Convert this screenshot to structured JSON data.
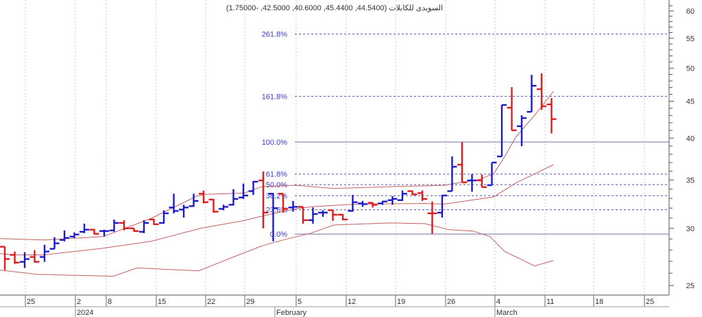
{
  "chart_data": {
    "type": "ohlc-bar",
    "title": "السويدى للكابلات (44.5400, 45.4400, 40.6000, 42.5000, -1.75000)",
    "y_scale": "log",
    "ylim": [
      24,
      62
    ],
    "y_ticks": [
      "60",
      "55",
      "50",
      "45",
      "40",
      "35",
      "30",
      "25"
    ],
    "y_tick_values": [
      60,
      55,
      50,
      45,
      40,
      35,
      30,
      25
    ],
    "x_ticks": [
      "25",
      "2",
      "8",
      "15",
      "22",
      "29",
      "5",
      "12",
      "19",
      "26",
      "4",
      "11",
      "18",
      "25"
    ],
    "x_months": [
      "2024",
      "February",
      "March"
    ],
    "grid": "vertical dotted",
    "colors": {
      "up": "#1a1acc",
      "down": "#e01a1a",
      "band": "#c06060",
      "fib_solid": "#7070a8",
      "fib_dotted": "#5050a0",
      "fib_label": "#3a3acc"
    },
    "bars_ohlc": [
      [
        28.29,
        28.29,
        26.26,
        27.2,
        "d"
      ],
      [
        27.56,
        27.86,
        26.79,
        26.9,
        "d"
      ],
      [
        26.96,
        27.8,
        26.44,
        27.2,
        "u"
      ],
      [
        27.38,
        27.98,
        26.9,
        26.96,
        "d"
      ],
      [
        27.38,
        28.47,
        26.96,
        27.86,
        "u"
      ],
      [
        28.1,
        29.16,
        28.1,
        28.6,
        "u"
      ],
      [
        28.91,
        29.8,
        28.78,
        29.1,
        "u"
      ],
      [
        29.22,
        29.61,
        29.1,
        29.42,
        "u"
      ],
      [
        29.67,
        30.45,
        29.54,
        29.87,
        "u"
      ],
      [
        29.87,
        29.93,
        29.42,
        29.48,
        "d"
      ],
      [
        29.74,
        29.87,
        29.22,
        29.74,
        "u"
      ],
      [
        29.8,
        30.86,
        29.67,
        30.52,
        "u"
      ],
      [
        30.52,
        30.79,
        29.8,
        30.0,
        "d"
      ],
      [
        30.0,
        30.0,
        29.67,
        29.74,
        "d"
      ],
      [
        29.67,
        30.79,
        29.54,
        30.52,
        "u"
      ],
      [
        30.86,
        30.92,
        30.32,
        30.39,
        "d"
      ],
      [
        30.52,
        31.78,
        30.45,
        31.47,
        "u"
      ],
      [
        32.06,
        33.5,
        31.47,
        31.71,
        "u"
      ],
      [
        31.85,
        32.34,
        31.05,
        32.06,
        "u"
      ],
      [
        32.2,
        33.5,
        32.13,
        32.74,
        "u"
      ],
      [
        33.5,
        33.85,
        32.48,
        32.61,
        "d"
      ],
      [
        32.88,
        32.95,
        31.54,
        31.64,
        "d"
      ],
      [
        31.92,
        32.34,
        31.78,
        32.13,
        "u"
      ],
      [
        32.34,
        33.99,
        32.27,
        32.95,
        "u"
      ],
      [
        33.1,
        34.6,
        32.95,
        33.31,
        "u"
      ],
      [
        33.78,
        34.88,
        33.37,
        34.81,
        "u"
      ],
      [
        34.95,
        35.96,
        30.0,
        31.54,
        "d"
      ],
      [
        33.5,
        33.57,
        28.78,
        31.99,
        "u"
      ],
      [
        33.5,
        33.5,
        31.54,
        31.92,
        "d"
      ],
      [
        32.06,
        32.74,
        31.64,
        32.13,
        "u"
      ],
      [
        32.13,
        32.13,
        30.45,
        30.79,
        "d"
      ],
      [
        30.79,
        32.06,
        30.45,
        31.4,
        "u"
      ],
      [
        31.54,
        31.78,
        31.12,
        31.54,
        "u"
      ],
      [
        31.78,
        31.78,
        30.72,
        31.33,
        "d"
      ],
      [
        31.33,
        31.4,
        30.79,
        30.86,
        "d"
      ],
      [
        31.71,
        33.37,
        31.64,
        32.61,
        "u"
      ],
      [
        32.48,
        32.74,
        32.13,
        32.41,
        "u"
      ],
      [
        32.54,
        32.61,
        32.06,
        32.34,
        "d"
      ],
      [
        32.48,
        32.74,
        32.34,
        32.68,
        "u"
      ],
      [
        32.82,
        33.24,
        32.34,
        32.95,
        "u"
      ],
      [
        32.82,
        33.85,
        32.74,
        33.5,
        "u"
      ],
      [
        33.78,
        33.85,
        33.37,
        33.43,
        "d"
      ],
      [
        33.57,
        33.85,
        32.74,
        32.95,
        "d"
      ],
      [
        31.47,
        32.68,
        29.48,
        31.47,
        "d"
      ],
      [
        31.54,
        33.37,
        31.05,
        33.31,
        "u"
      ],
      [
        33.78,
        37.73,
        33.78,
        36.51,
        "u"
      ],
      [
        36.75,
        39.5,
        34.74,
        34.74,
        "d"
      ],
      [
        34.95,
        35.67,
        33.71,
        34.95,
        "u"
      ],
      [
        34.95,
        35.6,
        34.21,
        34.21,
        "d"
      ],
      [
        34.42,
        37.0,
        34.42,
        37.0,
        "u"
      ],
      [
        37.73,
        44.46,
        37.73,
        44.46,
        "u"
      ],
      [
        44.08,
        47.06,
        41.01,
        41.01,
        "d"
      ],
      [
        41.55,
        43.02,
        38.99,
        42.64,
        "u"
      ],
      [
        43.5,
        48.95,
        43.5,
        47.27,
        "u"
      ],
      [
        46.76,
        49.17,
        43.78,
        44.27,
        "d"
      ],
      [
        44.54,
        45.44,
        40.6,
        42.5,
        "d"
      ]
    ],
    "bands": {
      "upper": [
        [
          -0.5,
          29.03
        ],
        [
          4,
          28.91
        ],
        [
          9.9,
          29.22
        ],
        [
          14.7,
          30.95
        ],
        [
          19.3,
          33.24
        ],
        [
          20.2,
          33.43
        ],
        [
          24.1,
          33.57
        ],
        [
          25.9,
          34.28
        ],
        [
          29.2,
          34.42
        ],
        [
          33.1,
          34.07
        ],
        [
          39.5,
          34.28
        ],
        [
          42.3,
          34.35
        ],
        [
          44.2,
          34.42
        ],
        [
          47.8,
          35.07
        ],
        [
          49.2,
          35.74
        ],
        [
          50.3,
          37.73
        ],
        [
          51.4,
          40.12
        ],
        [
          53.3,
          43.02
        ],
        [
          55.2,
          46.45
        ]
      ],
      "middle": [
        [
          -0.5,
          27.68
        ],
        [
          1.1,
          27.56
        ],
        [
          4,
          27.56
        ],
        [
          9.9,
          28.16
        ],
        [
          14.7,
          28.78
        ],
        [
          19.7,
          30.0
        ],
        [
          23.9,
          30.72
        ],
        [
          25.9,
          31.19
        ],
        [
          29.2,
          31.92
        ],
        [
          30.8,
          32.13
        ],
        [
          35.4,
          32.41
        ],
        [
          42.3,
          32.48
        ],
        [
          44.2,
          32.41
        ],
        [
          49.2,
          33.17
        ],
        [
          51.4,
          34.67
        ],
        [
          55.2,
          36.75
        ]
      ],
      "lower": [
        [
          -0.5,
          26.26
        ],
        [
          3.3,
          25.9
        ],
        [
          10.9,
          25.75
        ],
        [
          13.3,
          26.44
        ],
        [
          19.5,
          26.2
        ],
        [
          23,
          27.38
        ],
        [
          26,
          28.41
        ],
        [
          28.5,
          29.03
        ],
        [
          30.8,
          29.54
        ],
        [
          33.1,
          30.32
        ],
        [
          38.8,
          30.52
        ],
        [
          42.3,
          30.45
        ],
        [
          44.7,
          29.87
        ],
        [
          47.1,
          29.74
        ],
        [
          48.8,
          29.22
        ],
        [
          50.3,
          27.86
        ],
        [
          53.3,
          26.61
        ],
        [
          55.2,
          27.08
        ]
      ]
    },
    "fibonacci": {
      "base": 29.46,
      "top": 39.5,
      "levels": [
        {
          "label": "0.0%",
          "ratio": 0,
          "style": "solid"
        },
        {
          "label": "23.6%",
          "ratio": 0.236,
          "style": "dotted"
        },
        {
          "label": "38.2%",
          "ratio": 0.382,
          "style": "dotted"
        },
        {
          "label": "50.0%",
          "ratio": 0.5,
          "style": "dotted"
        },
        {
          "label": "61.8%",
          "ratio": 0.618,
          "style": "dotted"
        },
        {
          "label": "100.0%",
          "ratio": 1,
          "style": "solid"
        },
        {
          "label": "161.8%",
          "ratio": 1.618,
          "style": "dotted"
        },
        {
          "label": "261.8%",
          "ratio": 2.618,
          "style": "dotted"
        }
      ]
    }
  }
}
